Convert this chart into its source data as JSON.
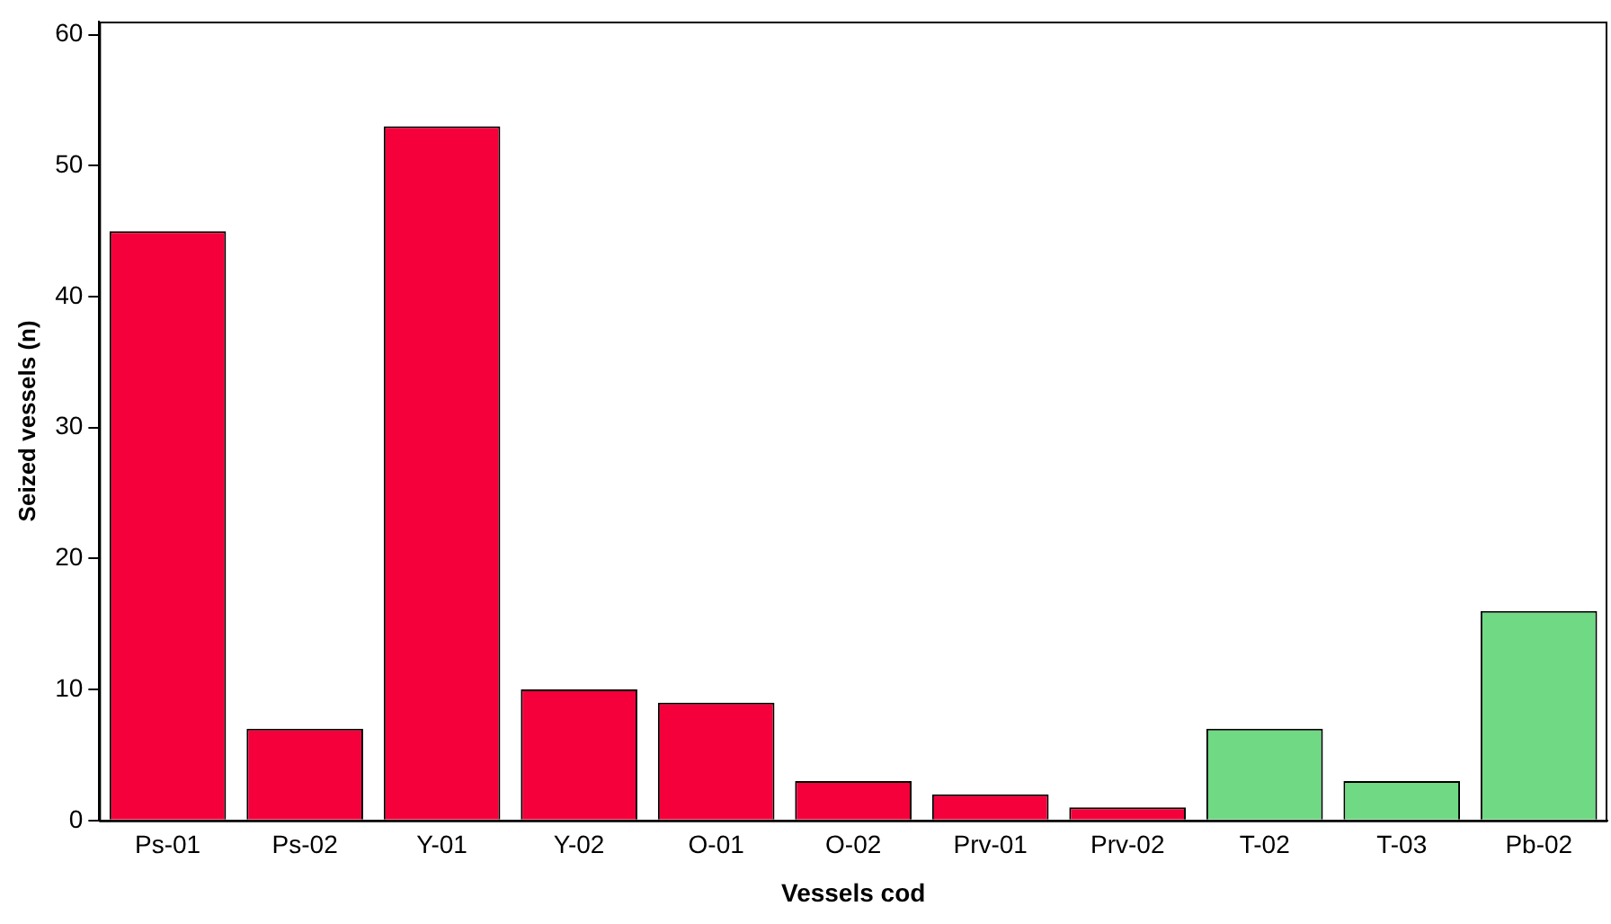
{
  "chart_data": {
    "type": "bar",
    "xlabel": "Vessels cod",
    "ylabel": "Seized vessels (n)",
    "categories": [
      "Ps-01",
      "Ps-02",
      "Y-01",
      "Y-02",
      "O-01",
      "O-02",
      "Prv-01",
      "Prv-02",
      "T-02",
      "T-03",
      "Pb-02"
    ],
    "values": [
      45,
      7,
      53,
      10,
      9,
      3,
      2,
      1,
      7,
      3,
      16
    ],
    "colors": [
      "#f5003a",
      "#f5003a",
      "#f5003a",
      "#f5003a",
      "#f5003a",
      "#f5003a",
      "#f5003a",
      "#f5003a",
      "#6fd983",
      "#6fd983",
      "#6fd983"
    ],
    "ylim": [
      0,
      61
    ],
    "yticks": [
      0,
      10,
      20,
      30,
      40,
      50,
      60
    ],
    "grid": false,
    "legend": false
  }
}
